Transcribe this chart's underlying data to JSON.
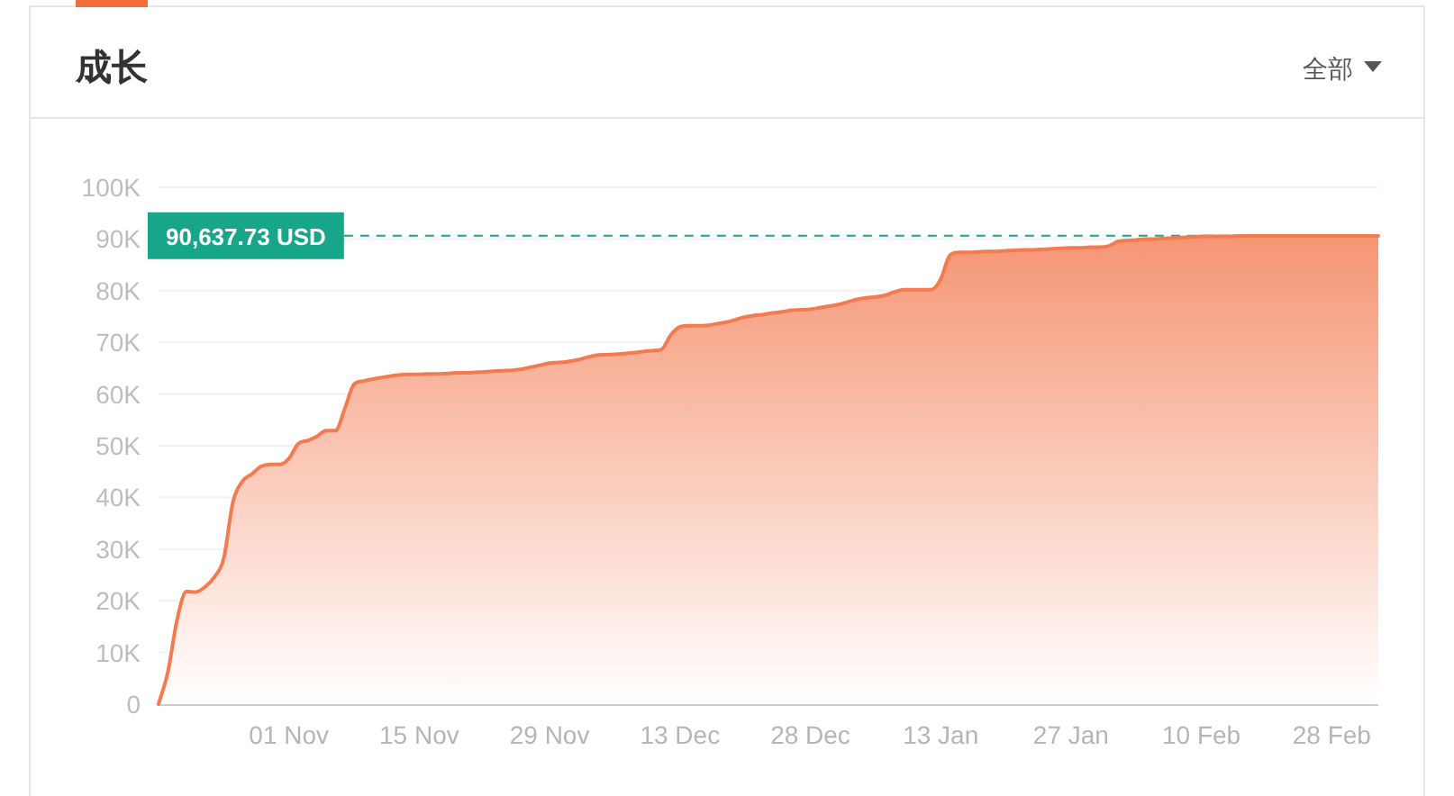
{
  "chart_data": {
    "type": "area",
    "title": "成长",
    "annotations": [
      "全部"
    ],
    "categories": [
      null,
      null,
      null,
      null,
      null,
      null,
      null,
      null,
      null,
      null,
      null,
      null,
      null,
      null,
      "01 Nov",
      null,
      null,
      null,
      null,
      null,
      null,
      null,
      null,
      null,
      null,
      null,
      null,
      null,
      "15 Nov",
      null,
      null,
      null,
      null,
      null,
      null,
      null,
      null,
      null,
      null,
      null,
      null,
      null,
      "29 Nov",
      null,
      null,
      null,
      null,
      null,
      null,
      null,
      null,
      null,
      null,
      null,
      null,
      null,
      "13 Dec",
      null,
      null,
      null,
      null,
      null,
      null,
      null,
      null,
      null,
      null,
      null,
      null,
      null,
      "28 Dec",
      null,
      null,
      null,
      null,
      null,
      null,
      null,
      null,
      null,
      null,
      null,
      null,
      null,
      "13 Jan",
      null,
      null,
      null,
      null,
      null,
      null,
      null,
      null,
      null,
      null,
      null,
      null,
      null,
      "27 Jan",
      null,
      null,
      null,
      null,
      null,
      null,
      null,
      null,
      null,
      null,
      null,
      null,
      null,
      "10 Feb",
      null,
      null,
      null,
      null,
      null,
      null,
      null,
      null,
      null,
      null,
      null,
      null,
      null,
      "28 Feb",
      null,
      null,
      null,
      null,
      null
    ],
    "values": [
      0,
      6200,
      16400,
      21800,
      21700,
      22700,
      24600,
      28200,
      39200,
      43100,
      44500,
      46000,
      46400,
      46400,
      47500,
      50400,
      51000,
      51800,
      52900,
      52900,
      57200,
      61900,
      62500,
      62900,
      63200,
      63500,
      63700,
      63800,
      63800,
      63900,
      63900,
      64000,
      64100,
      64100,
      64200,
      64300,
      64400,
      64500,
      64600,
      64800,
      65200,
      65600,
      66000,
      66100,
      66300,
      66600,
      67100,
      67500,
      67600,
      67700,
      67800,
      68000,
      68200,
      68400,
      68600,
      71400,
      73000,
      73200,
      73200,
      73300,
      73600,
      73900,
      74400,
      74900,
      75200,
      75400,
      75700,
      75900,
      76200,
      76300,
      76400,
      76700,
      77000,
      77300,
      77800,
      78300,
      78600,
      78800,
      79100,
      79700,
      80200,
      80200,
      80200,
      80200,
      82200,
      86900,
      87400,
      87400,
      87500,
      87600,
      87600,
      87700,
      87800,
      87900,
      87900,
      88000,
      88100,
      88200,
      88300,
      88300,
      88400,
      88400,
      88600,
      89500,
      89700,
      89800,
      90000,
      90000,
      90100,
      90200,
      90300,
      90400,
      90500,
      90500,
      90500,
      90500,
      90600,
      90600,
      90600,
      90600,
      90600,
      90600,
      90600,
      90600,
      90600,
      90600,
      90600,
      90600,
      90600,
      90600,
      90600,
      90600
    ],
    "color": "#f47a50",
    "ylim": [
      0,
      100000
    ],
    "yticks": [
      0,
      {
        "value": 10000,
        "label": "10K"
      },
      {
        "value": 20000,
        "label": "20K"
      },
      {
        "value": 30000,
        "label": "30K"
      },
      {
        "value": 40000,
        "label": "40K"
      },
      {
        "value": 50000,
        "label": "50K"
      },
      {
        "value": 60000,
        "label": "60K"
      },
      {
        "value": 70000,
        "label": "70K"
      },
      {
        "value": 80000,
        "label": "80K"
      },
      {
        "value": 90000,
        "label": "90K"
      },
      {
        "value": 100000,
        "label": "100K"
      }
    ],
    "grid": "y",
    "ref_lines": [
      {
        "axis": "y",
        "value": 90637.73,
        "label": "90,637.73 USD",
        "color": "#17a689",
        "line_style": "dashed"
      }
    ]
  }
}
